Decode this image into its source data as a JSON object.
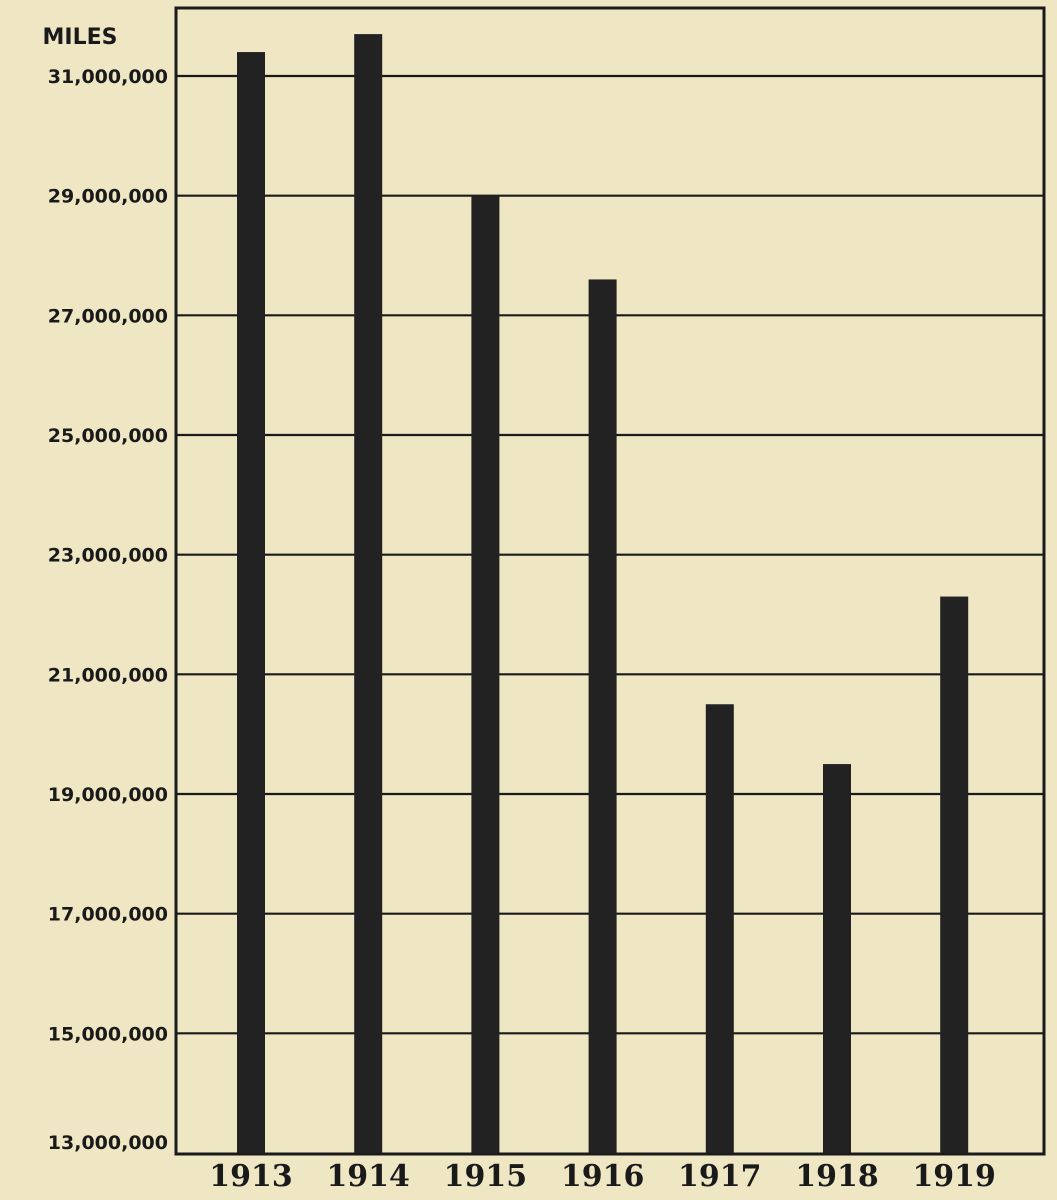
{
  "chart_data": {
    "type": "bar",
    "title": "",
    "xlabel": "",
    "ylabel": "MILES",
    "categories": [
      "1913",
      "1914",
      "1915",
      "1916",
      "1917",
      "1918",
      "1919"
    ],
    "values": [
      31400000,
      31700000,
      29000000,
      27600000,
      20500000,
      19500000,
      22300000
    ],
    "yticks": [
      13000000,
      15000000,
      17000000,
      19000000,
      21000000,
      23000000,
      25000000,
      27000000,
      29000000,
      31000000
    ],
    "ytick_labels": [
      "13,000,000",
      "15,000,000",
      "17,000,000",
      "19,000,000",
      "21,000,000",
      "23,000,000",
      "25,000,000",
      "27,000,000",
      "29,000,000",
      "31,000,000"
    ],
    "ylim": [
      13000000,
      31000000
    ],
    "grid": true,
    "colors": {
      "bar": "#222222",
      "grid": "#1a1a1a",
      "background": "#efe6c4"
    }
  }
}
